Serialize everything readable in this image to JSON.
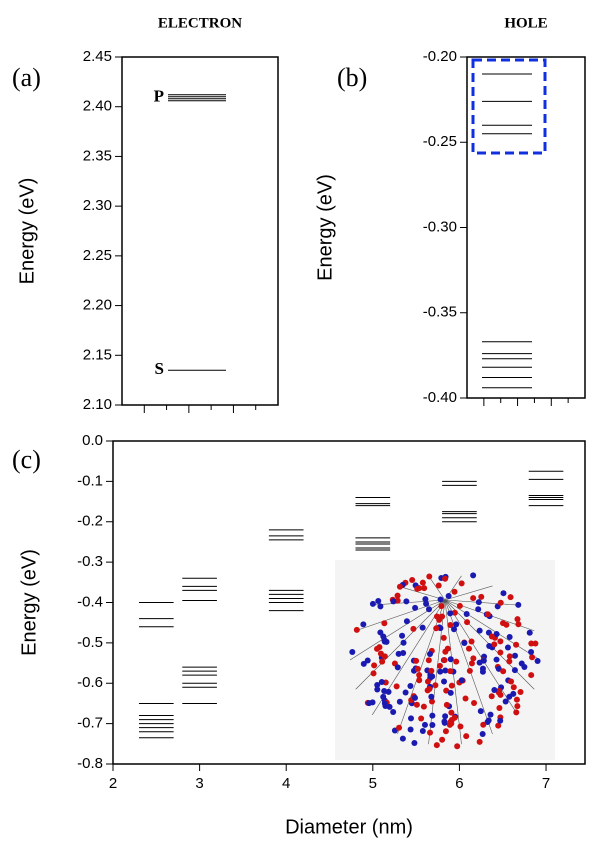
{
  "chart_data": [
    {
      "type": "energy-levels",
      "title": "ELECTRON",
      "panel_label": "(a)",
      "ylabel": "Energy (eV)",
      "ylim": [
        2.1,
        2.45
      ],
      "yticks": [
        {
          "value": 2.1,
          "label": "2.10"
        },
        2.15,
        {
          "value": 2.2,
          "label": "2.20"
        },
        2.25,
        {
          "value": 2.3,
          "label": "2.30"
        },
        2.35,
        {
          "value": 2.4,
          "label": "2.40"
        },
        2.45
      ],
      "level_groups": [
        {
          "label": "P",
          "values": [
            2.412,
            2.41,
            2.408,
            2.406
          ]
        },
        {
          "label": "S",
          "values": [
            2.135
          ]
        }
      ]
    },
    {
      "type": "energy-levels",
      "title": "HOLE",
      "panel_label": "(b)",
      "ylabel": "Energy (eV)",
      "ylim": [
        -0.4,
        -0.2
      ],
      "yticks": [
        {
          "value": -0.2,
          "label": "-0.20"
        },
        -0.25,
        {
          "value": -0.3,
          "label": "-0.30"
        },
        -0.35,
        {
          "value": -0.4,
          "label": "-0.40"
        }
      ],
      "level_groups": [
        {
          "values": [
            -0.21,
            -0.226,
            -0.24,
            -0.245
          ]
        },
        {
          "values": [
            -0.367,
            -0.374,
            -0.377,
            -0.382,
            -0.388,
            -0.394
          ]
        }
      ]
    },
    {
      "type": "energy-levels-vs-x",
      "panel_label": "(c)",
      "ylabel": "Energy (eV)",
      "xlabel": "Diameter (nm)",
      "xlim": [
        2,
        7.45
      ],
      "xticks": [
        2,
        3,
        4,
        5,
        6,
        7
      ],
      "ylim": [
        -0.8,
        0.0
      ],
      "yticks": [
        {
          "value": 0.0,
          "label": "0.0"
        },
        -0.1,
        -0.2,
        -0.3,
        -0.4,
        -0.5,
        -0.6,
        -0.7,
        -0.8
      ],
      "x": [
        2.5,
        3.0,
        4.0,
        5.0,
        6.0,
        7.0
      ],
      "levels": [
        [
          -0.4,
          -0.44,
          -0.46,
          -0.65,
          -0.68,
          -0.69,
          -0.7,
          -0.71,
          -0.72,
          -0.735
        ],
        [
          -0.34,
          -0.36,
          -0.37,
          -0.395,
          -0.56,
          -0.57,
          -0.58,
          -0.6,
          -0.61,
          -0.65
        ],
        [
          -0.22,
          -0.235,
          -0.245,
          -0.37,
          -0.38,
          -0.39,
          -0.4,
          -0.42
        ],
        [
          -0.14,
          -0.155,
          -0.16,
          -0.24,
          -0.25,
          -0.255,
          -0.265,
          -0.27
        ],
        [
          -0.1,
          -0.11,
          -0.175,
          -0.18,
          -0.19,
          -0.2
        ],
        [
          -0.075,
          -0.095,
          -0.135,
          -0.14,
          -0.145,
          -0.16
        ]
      ]
    }
  ]
}
